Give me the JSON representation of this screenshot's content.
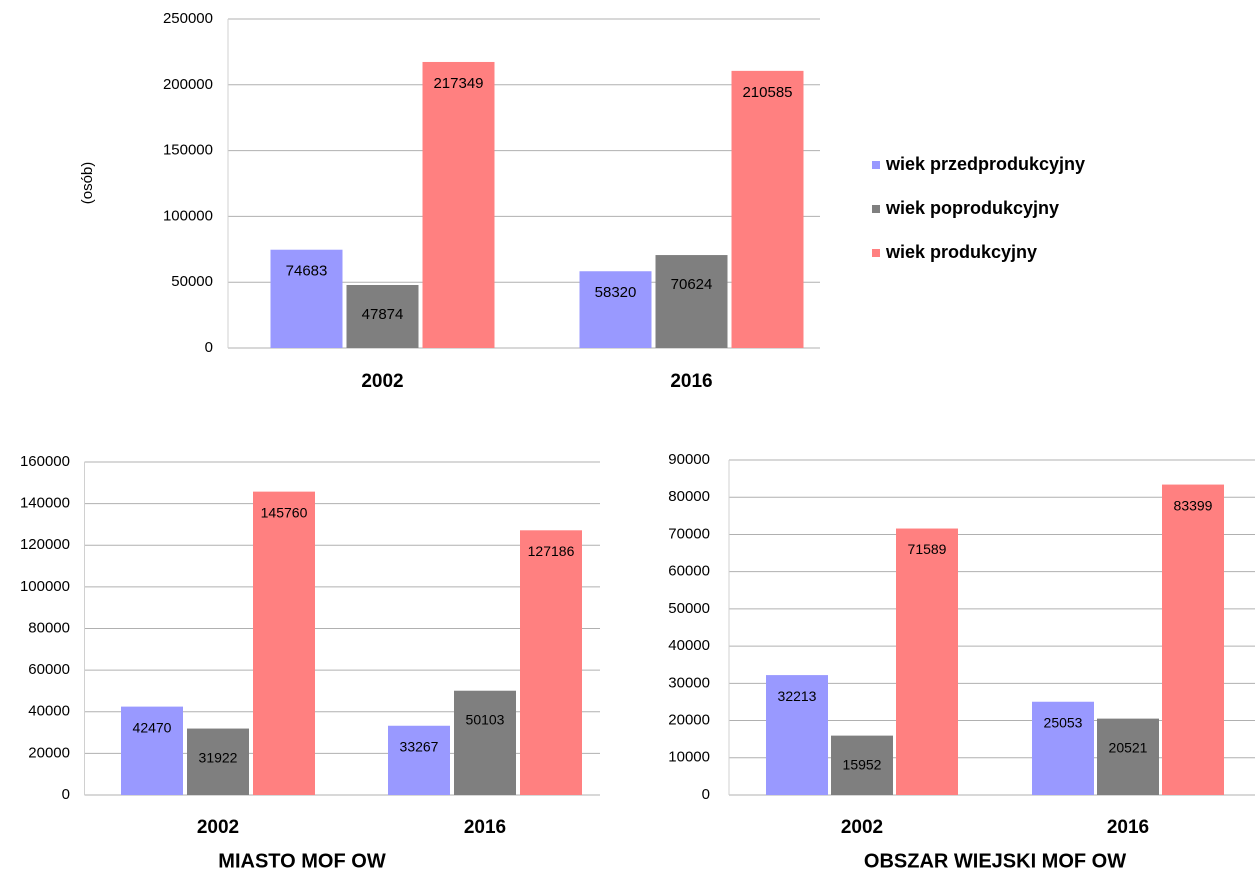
{
  "chart_data": [
    {
      "type": "bar",
      "ylabel": "(osób)",
      "categories": [
        "2002",
        "2016"
      ],
      "series": [
        {
          "name": "wiek przedprodukcyjny",
          "color": "#9999ff",
          "values": [
            74683,
            58320
          ]
        },
        {
          "name": "wiek poprodukcyjny",
          "color": "#7f7f7f",
          "values": [
            47874,
            70624
          ]
        },
        {
          "name": "wiek produkcyjny",
          "color": "#ff8080",
          "values": [
            217349,
            210585
          ]
        }
      ],
      "ylim": [
        0,
        250000
      ],
      "yticks": [
        0,
        50000,
        100000,
        150000,
        200000,
        250000
      ],
      "grid": true,
      "legend": "right"
    },
    {
      "type": "bar",
      "title": "MIASTO MOF OW",
      "categories": [
        "2002",
        "2016"
      ],
      "series": [
        {
          "color": "#9999ff",
          "values": [
            42470,
            33267
          ]
        },
        {
          "color": "#7f7f7f",
          "values": [
            31922,
            50103
          ]
        },
        {
          "color": "#ff8080",
          "values": [
            145760,
            127186
          ]
        }
      ],
      "ylim": [
        0,
        160000
      ],
      "yticks": [
        0,
        20000,
        40000,
        60000,
        80000,
        100000,
        120000,
        140000,
        160000
      ],
      "grid": true
    },
    {
      "type": "bar",
      "title": "OBSZAR WIEJSKI MOF OW",
      "categories": [
        "2002",
        "2016"
      ],
      "series": [
        {
          "color": "#9999ff",
          "values": [
            32213,
            25053
          ]
        },
        {
          "color": "#7f7f7f",
          "values": [
            15952,
            20521
          ]
        },
        {
          "color": "#ff8080",
          "values": [
            71589,
            83399
          ]
        }
      ],
      "ylim": [
        0,
        90000
      ],
      "yticks": [
        0,
        10000,
        20000,
        30000,
        40000,
        50000,
        60000,
        70000,
        80000,
        90000
      ],
      "grid": true
    }
  ]
}
